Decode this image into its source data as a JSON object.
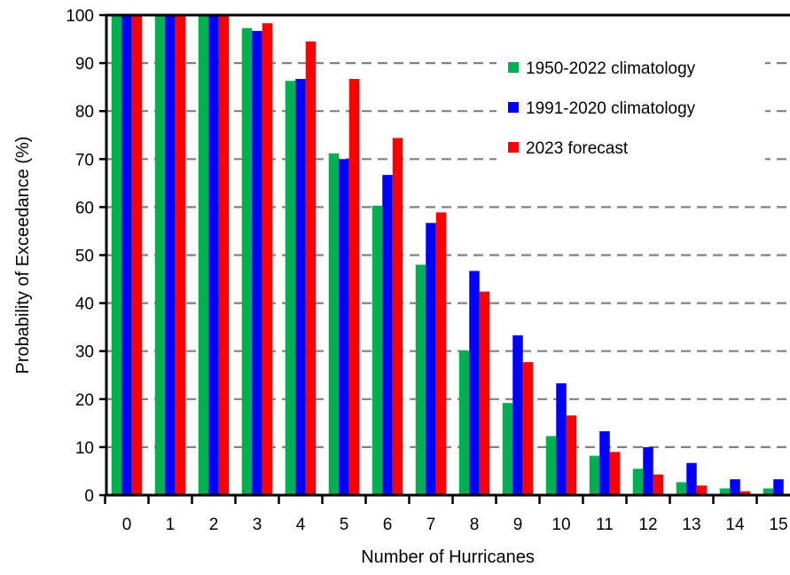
{
  "chart_data": {
    "type": "bar",
    "title": "",
    "xlabel": "Number of Hurricanes",
    "ylabel": "Probability of Exceedance (%)",
    "ylim": [
      0,
      100
    ],
    "yticks": [
      0,
      10,
      20,
      30,
      40,
      50,
      60,
      70,
      80,
      90,
      100
    ],
    "grid": "horizontal dashed",
    "legend_position": "top-right",
    "categories": [
      "0",
      "1",
      "2",
      "3",
      "4",
      "5",
      "6",
      "7",
      "8",
      "9",
      "10",
      "11",
      "12",
      "13",
      "14",
      "15"
    ],
    "series": [
      {
        "name": "1950-2022 climatology",
        "color": "#00b050",
        "values": [
          100,
          100,
          100,
          97.3,
          86.3,
          71.2,
          60.3,
          48.0,
          30.1,
          19.2,
          12.3,
          8.2,
          5.5,
          2.7,
          1.4,
          1.4
        ]
      },
      {
        "name": "1991-2020 climatology",
        "color": "#0000ff",
        "values": [
          100,
          100,
          100,
          96.7,
          86.7,
          70.0,
          66.7,
          56.7,
          46.7,
          33.3,
          23.3,
          13.3,
          10.0,
          6.7,
          3.3,
          3.3
        ]
      },
      {
        "name": "2023 forecast",
        "color": "#ff0000",
        "values": [
          100,
          100,
          99.9,
          98.3,
          94.5,
          86.7,
          74.4,
          58.9,
          42.4,
          27.7,
          16.6,
          9.0,
          4.3,
          2.0,
          0.8,
          0.3
        ]
      }
    ]
  }
}
